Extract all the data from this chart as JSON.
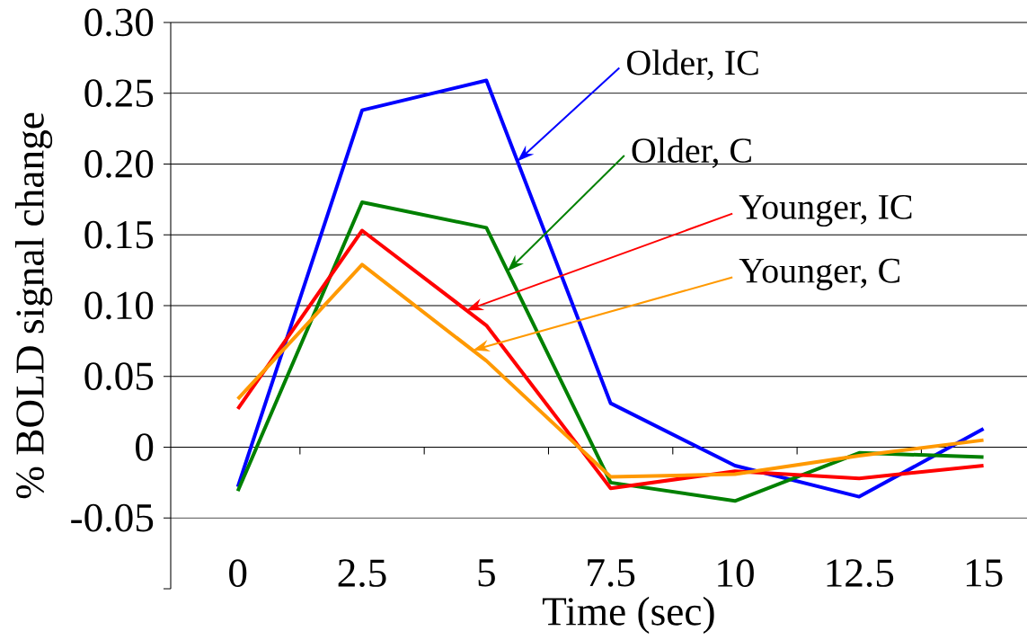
{
  "chart_data": {
    "type": "line",
    "xlabel": "Time (sec)",
    "ylabel": "% BOLD signal change",
    "categories": [
      "0",
      "2.5",
      "5",
      "7.5",
      "10",
      "12.5",
      "15"
    ],
    "series": [
      {
        "name": "Older, IC",
        "color": "#0000ff",
        "values": [
          -0.028,
          0.238,
          0.259,
          0.031,
          -0.013,
          -0.035,
          0.013
        ]
      },
      {
        "name": "Older, C",
        "color": "#008000",
        "values": [
          -0.031,
          0.173,
          0.155,
          -0.025,
          -0.038,
          -0.004,
          -0.007
        ]
      },
      {
        "name": "Younger, IC",
        "color": "#ff0000",
        "values": [
          0.027,
          0.153,
          0.086,
          -0.029,
          -0.017,
          -0.022,
          -0.013
        ]
      },
      {
        "name": "Younger, C",
        "color": "#ff9900",
        "values": [
          0.034,
          0.129,
          0.061,
          -0.021,
          -0.019,
          -0.006,
          0.005
        ]
      }
    ],
    "ylim": [
      -0.1,
      0.3
    ],
    "yticks": [
      {
        "value": -0.1,
        "label": null
      },
      -0.05,
      0,
      0.05,
      {
        "value": 0.1,
        "label": "0.10"
      },
      0.15,
      {
        "value": 0.2,
        "label": "0.20"
      },
      0.25,
      {
        "value": 0.3,
        "label": "0.30"
      }
    ],
    "grid": "y",
    "marker": "none",
    "line_style": "solid"
  }
}
